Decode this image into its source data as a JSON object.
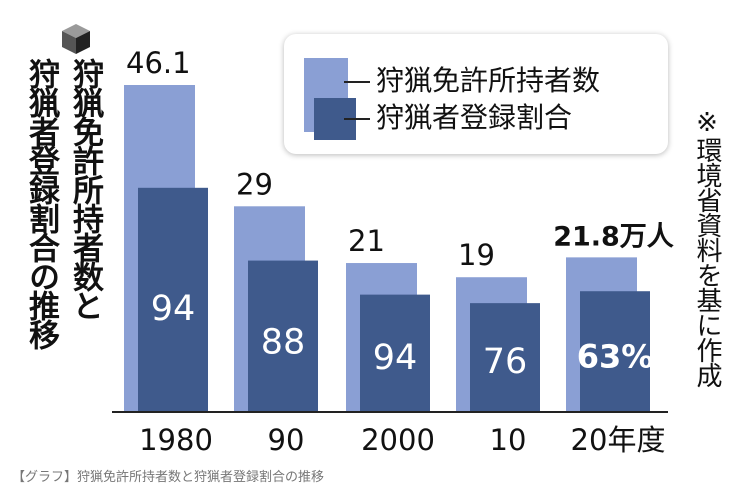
{
  "title_lines": [
    "狩猟免許所持者数と",
    "狩猟者登録割合の推移"
  ],
  "note": "※環境省資料を基に作成",
  "caption": "【グラフ】狩猟免許所持者数と狩猟者登録割合の推移",
  "colors": {
    "license": "#8a9fd4",
    "registration": "#3f5a8c",
    "text": "#1a1a1a"
  },
  "chart_data": {
    "type": "bar",
    "categories": [
      "1980",
      "90",
      "2000",
      "10",
      "20年度"
    ],
    "series": [
      {
        "name": "狩猟免許所持者数",
        "values": [
          46.1,
          29,
          21,
          19,
          21.8
        ],
        "labels": [
          "46.1",
          "29",
          "21",
          "19",
          "21.8万人"
        ]
      },
      {
        "name": "狩猟者登録割合",
        "values": [
          94,
          88,
          94,
          76,
          63
        ],
        "labels": [
          "94",
          "88",
          "94",
          "76",
          "63%"
        ]
      }
    ],
    "ylim": [
      0,
      46.1
    ]
  }
}
